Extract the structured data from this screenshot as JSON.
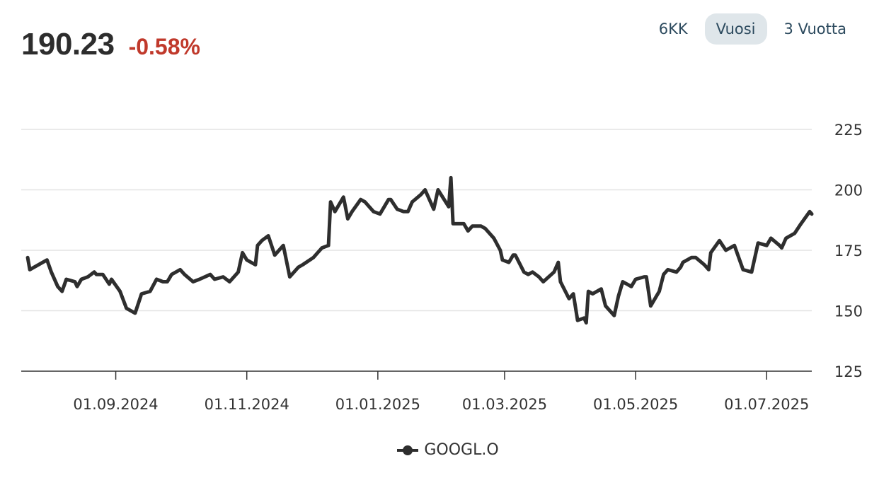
{
  "quote": {
    "price": "190.23",
    "change": "-0.58%"
  },
  "colors": {
    "line": "#2e2e2e",
    "negative": "#c0392b",
    "grid": "#e3e3e3",
    "axis": "#333333",
    "active_range_bg": "#dfe6ea",
    "range_text": "#2c4a5e"
  },
  "ranges": [
    {
      "label": "6KK",
      "active": false
    },
    {
      "label": "Vuosi",
      "active": true
    },
    {
      "label": "3 Vuotta",
      "active": false
    }
  ],
  "chart_data": {
    "type": "line",
    "title": "",
    "xlabel": "",
    "ylabel": "",
    "x_type": "date",
    "y_axis_position": "right",
    "ylim": [
      125,
      225
    ],
    "xlim": [
      "2024-07-19",
      "2025-07-22"
    ],
    "y_ticks": [
      "225",
      "200",
      "175",
      "150",
      "125"
    ],
    "x_ticks": [
      {
        "date": "2024-09-01",
        "label": "01.09.2024"
      },
      {
        "date": "2024-11-01",
        "label": "01.11.2024"
      },
      {
        "date": "2025-01-01",
        "label": "01.01.2025"
      },
      {
        "date": "2025-03-01",
        "label": "01.03.2025"
      },
      {
        "date": "2025-05-01",
        "label": "01.05.2025"
      },
      {
        "date": "2025-07-01",
        "label": "01.07.2025"
      }
    ],
    "grid": true,
    "legend_position": "bottom-center",
    "series": [
      {
        "name": "GOOGL.O",
        "points": [
          [
            "2024-07-22",
            172
          ],
          [
            "2024-07-23",
            167
          ],
          [
            "2024-07-29",
            170
          ],
          [
            "2024-07-31",
            171
          ],
          [
            "2024-08-02",
            166
          ],
          [
            "2024-08-05",
            160
          ],
          [
            "2024-08-07",
            158
          ],
          [
            "2024-08-09",
            163
          ],
          [
            "2024-08-13",
            162
          ],
          [
            "2024-08-14",
            160
          ],
          [
            "2024-08-16",
            163
          ],
          [
            "2024-08-19",
            164
          ],
          [
            "2024-08-22",
            166
          ],
          [
            "2024-08-23",
            165
          ],
          [
            "2024-08-26",
            165
          ],
          [
            "2024-08-29",
            161
          ],
          [
            "2024-08-30",
            163
          ],
          [
            "2024-09-03",
            158
          ],
          [
            "2024-09-06",
            151
          ],
          [
            "2024-09-10",
            149
          ],
          [
            "2024-09-13",
            157
          ],
          [
            "2024-09-17",
            158
          ],
          [
            "2024-09-20",
            163
          ],
          [
            "2024-09-23",
            162
          ],
          [
            "2024-09-25",
            162
          ],
          [
            "2024-09-27",
            165
          ],
          [
            "2024-10-01",
            167
          ],
          [
            "2024-10-03",
            165
          ],
          [
            "2024-10-07",
            162
          ],
          [
            "2024-10-10",
            163
          ],
          [
            "2024-10-15",
            165
          ],
          [
            "2024-10-17",
            163
          ],
          [
            "2024-10-21",
            164
          ],
          [
            "2024-10-24",
            162
          ],
          [
            "2024-10-28",
            166
          ],
          [
            "2024-10-30",
            174
          ],
          [
            "2024-11-01",
            171
          ],
          [
            "2024-11-05",
            169
          ],
          [
            "2024-11-06",
            177
          ],
          [
            "2024-11-08",
            179
          ],
          [
            "2024-11-11",
            181
          ],
          [
            "2024-11-14",
            173
          ],
          [
            "2024-11-18",
            177
          ],
          [
            "2024-11-21",
            164
          ],
          [
            "2024-11-25",
            168
          ],
          [
            "2024-11-27",
            169
          ],
          [
            "2024-12-02",
            172
          ],
          [
            "2024-12-04",
            174
          ],
          [
            "2024-12-06",
            176
          ],
          [
            "2024-12-09",
            177
          ],
          [
            "2024-12-10",
            195
          ],
          [
            "2024-12-12",
            191
          ],
          [
            "2024-12-16",
            197
          ],
          [
            "2024-12-18",
            188
          ],
          [
            "2024-12-20",
            191
          ],
          [
            "2024-12-24",
            196
          ],
          [
            "2024-12-26",
            195
          ],
          [
            "2024-12-30",
            191
          ],
          [
            "2025-01-02",
            190
          ],
          [
            "2025-01-06",
            196
          ],
          [
            "2025-01-07",
            196
          ],
          [
            "2025-01-10",
            192
          ],
          [
            "2025-01-13",
            191
          ],
          [
            "2025-01-15",
            191
          ],
          [
            "2025-01-17",
            195
          ],
          [
            "2025-01-21",
            198
          ],
          [
            "2025-01-23",
            200
          ],
          [
            "2025-01-27",
            192
          ],
          [
            "2025-01-29",
            200
          ],
          [
            "2025-02-03",
            193
          ],
          [
            "2025-02-04",
            205
          ],
          [
            "2025-02-05",
            186
          ],
          [
            "2025-02-07",
            186
          ],
          [
            "2025-02-10",
            186
          ],
          [
            "2025-02-12",
            183
          ],
          [
            "2025-02-14",
            185
          ],
          [
            "2025-02-18",
            185
          ],
          [
            "2025-02-20",
            184
          ],
          [
            "2025-02-24",
            180
          ],
          [
            "2025-02-27",
            175
          ],
          [
            "2025-02-28",
            171
          ],
          [
            "2025-03-03",
            170
          ],
          [
            "2025-03-05",
            173
          ],
          [
            "2025-03-06",
            173
          ],
          [
            "2025-03-10",
            166
          ],
          [
            "2025-03-12",
            165
          ],
          [
            "2025-03-14",
            166
          ],
          [
            "2025-03-17",
            164
          ],
          [
            "2025-03-19",
            162
          ],
          [
            "2025-03-24",
            166
          ],
          [
            "2025-03-26",
            170
          ],
          [
            "2025-03-27",
            162
          ],
          [
            "2025-03-31",
            155
          ],
          [
            "2025-04-02",
            157
          ],
          [
            "2025-04-04",
            146
          ],
          [
            "2025-04-07",
            147
          ],
          [
            "2025-04-08",
            145
          ],
          [
            "2025-04-09",
            158
          ],
          [
            "2025-04-11",
            157
          ],
          [
            "2025-04-15",
            159
          ],
          [
            "2025-04-17",
            152
          ],
          [
            "2025-04-21",
            148
          ],
          [
            "2025-04-23",
            156
          ],
          [
            "2025-04-25",
            162
          ],
          [
            "2025-04-29",
            160
          ],
          [
            "2025-05-01",
            163
          ],
          [
            "2025-05-05",
            164
          ],
          [
            "2025-05-06",
            164
          ],
          [
            "2025-05-08",
            152
          ],
          [
            "2025-05-12",
            158
          ],
          [
            "2025-05-14",
            165
          ],
          [
            "2025-05-16",
            167
          ],
          [
            "2025-05-20",
            166
          ],
          [
            "2025-05-22",
            168
          ],
          [
            "2025-05-23",
            170
          ],
          [
            "2025-05-27",
            172
          ],
          [
            "2025-05-29",
            172
          ],
          [
            "2025-06-02",
            169
          ],
          [
            "2025-06-04",
            167
          ],
          [
            "2025-06-05",
            174
          ],
          [
            "2025-06-09",
            179
          ],
          [
            "2025-06-12",
            175
          ],
          [
            "2025-06-16",
            177
          ],
          [
            "2025-06-20",
            167
          ],
          [
            "2025-06-24",
            166
          ],
          [
            "2025-06-26",
            174
          ],
          [
            "2025-06-27",
            178
          ],
          [
            "2025-07-01",
            177
          ],
          [
            "2025-07-03",
            180
          ],
          [
            "2025-07-07",
            177
          ],
          [
            "2025-07-08",
            176
          ],
          [
            "2025-07-10",
            180
          ],
          [
            "2025-07-14",
            182
          ],
          [
            "2025-07-17",
            186
          ],
          [
            "2025-07-21",
            191
          ],
          [
            "2025-07-22",
            190
          ]
        ]
      }
    ]
  }
}
